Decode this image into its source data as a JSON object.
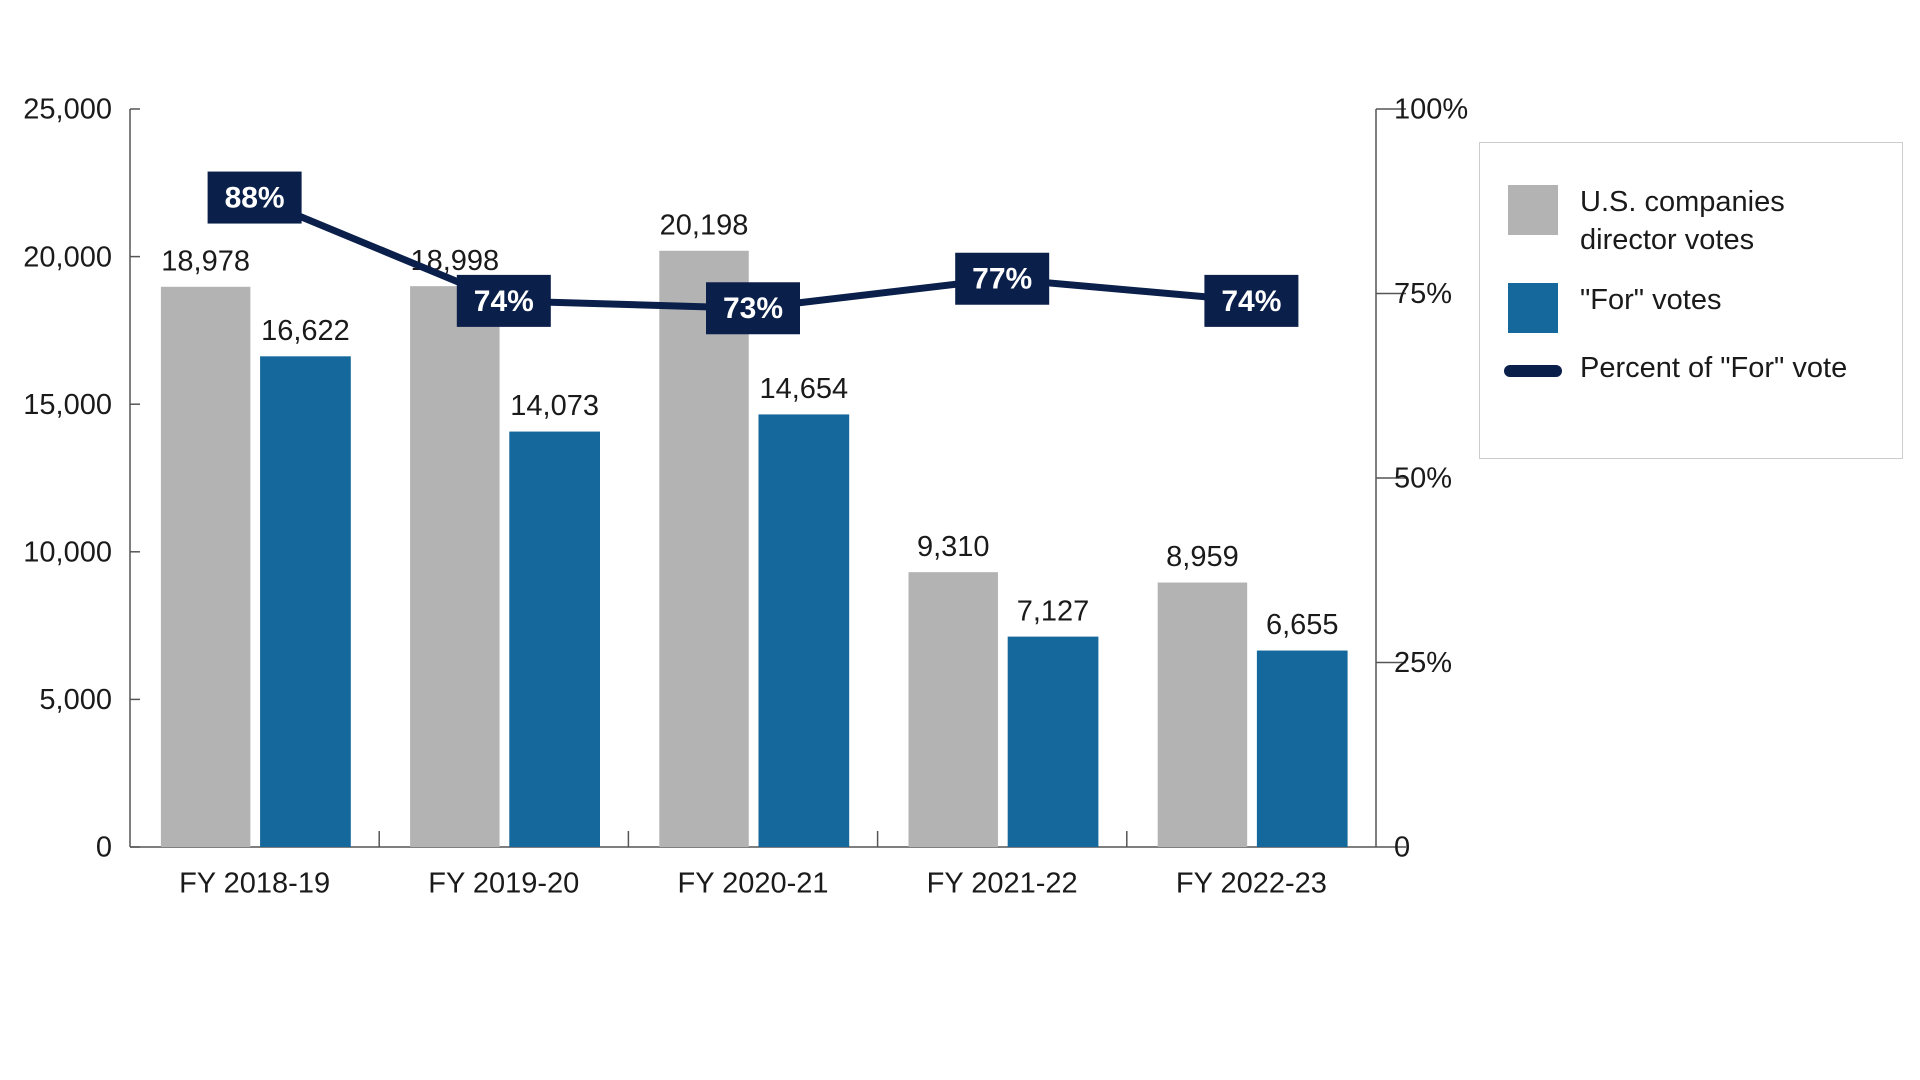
{
  "chart_data": {
    "type": "bar",
    "categories": [
      "FY 2018-19",
      "FY 2019-20",
      "FY 2020-21",
      "FY 2021-22",
      "FY 2022-23"
    ],
    "series": [
      {
        "name": "U.S. companies director votes",
        "color": "#b3b3b3",
        "values": [
          18978,
          18998,
          20198,
          9310,
          8959
        ],
        "value_labels": [
          "18,978",
          "18,998",
          "20,198",
          "9,310",
          "8,959"
        ]
      },
      {
        "name": "\"For\" votes",
        "color": "#14689c",
        "values": [
          16622,
          14073,
          14654,
          7127,
          6655
        ],
        "value_labels": [
          "16,622",
          "14,073",
          "14,654",
          "7,127",
          "6,655"
        ]
      },
      {
        "name": "Percent of \"For\" vote",
        "type": "line",
        "axis": "y2",
        "color": "#0b1f4b",
        "values": [
          88,
          74,
          73,
          77,
          74
        ],
        "value_labels": [
          "88%",
          "74%",
          "73%",
          "77%",
          "74%"
        ]
      }
    ],
    "ylim": [
      0,
      25000
    ],
    "yticks": [
      0,
      {
        "value": 5000,
        "label": "5,000"
      },
      {
        "value": 10000,
        "label": "10,000"
      },
      {
        "value": 15000,
        "label": "15,000"
      },
      {
        "value": 20000,
        "label": "20,000"
      },
      {
        "value": 25000,
        "label": "25,000"
      }
    ],
    "y2lim": [
      0,
      100
    ],
    "y2ticks": [
      0,
      {
        "value": 25,
        "label": "25%"
      },
      {
        "value": 50,
        "label": "50%"
      },
      {
        "value": 75,
        "label": "75%"
      },
      {
        "value": 100,
        "label": "100%"
      }
    ],
    "grid": false,
    "legend": "right"
  }
}
